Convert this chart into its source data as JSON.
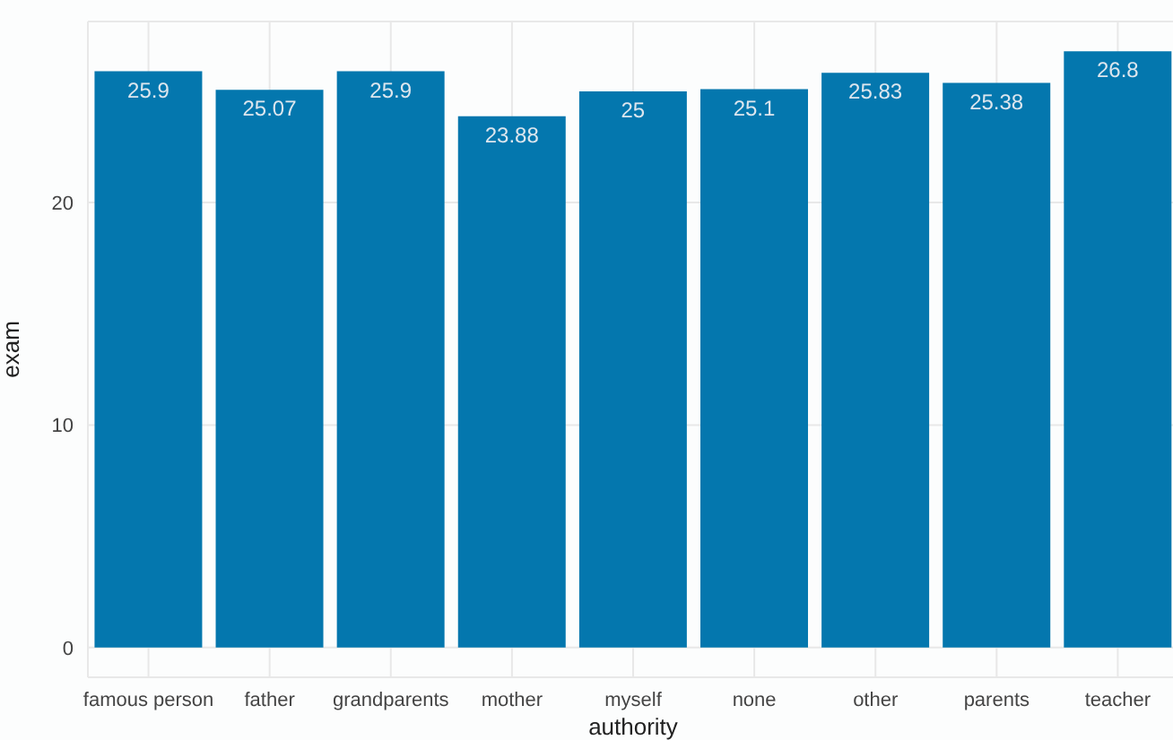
{
  "chart_data": {
    "type": "bar",
    "xlabel": "authority",
    "ylabel": "exam",
    "categories": [
      "famous person",
      "father",
      "grandparents",
      "mother",
      "myself",
      "none",
      "other",
      "parents",
      "teacher"
    ],
    "values": [
      25.9,
      25.07,
      25.9,
      23.88,
      25,
      25.1,
      25.83,
      25.38,
      26.8
    ],
    "color": "#0477ae",
    "ylim": [
      -1.34,
      28.14
    ],
    "yticks": [
      0,
      10,
      20
    ],
    "grid": true,
    "data_labels": true
  }
}
